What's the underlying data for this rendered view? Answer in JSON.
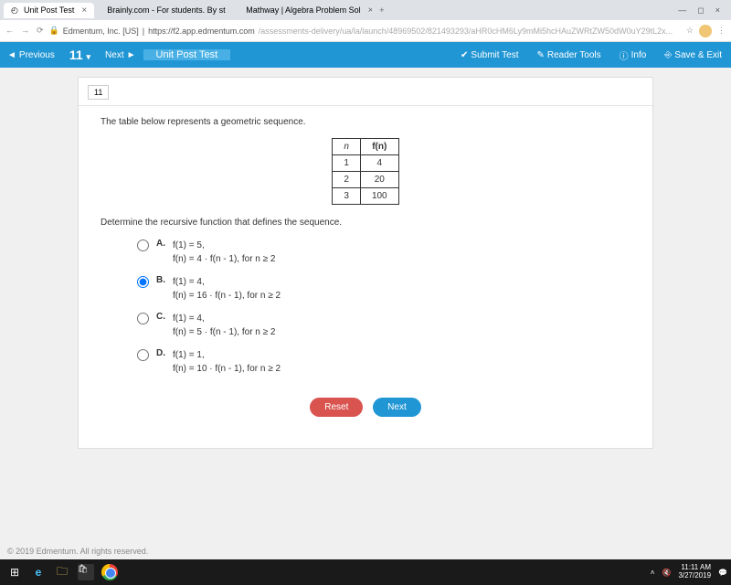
{
  "browser": {
    "tabs": [
      {
        "title": "Unit Post Test",
        "active": true
      },
      {
        "title": "Brainly.com - For students. By st",
        "active": false
      },
      {
        "title": "Mathway | Algebra Problem Sol",
        "active": false
      }
    ],
    "url_prefix": "Edmentum, Inc. [US]",
    "url_domain": "https://f2.app.edmentum.com",
    "url_path": "/assessments-delivery/ua/la/launch/48969502/821493293/aHR0cHM6Ly9mMi5hcHAuZWRtZW50dW0uY29tL2x..."
  },
  "appbar": {
    "prev": "Previous",
    "qnum": "11",
    "next": "Next",
    "title": "Unit Post Test",
    "submit": "Submit Test",
    "tools": "Reader Tools",
    "info": "Info",
    "save": "Save & Exit"
  },
  "question": {
    "number": "11",
    "prompt": "The table below represents a geometric sequence.",
    "table": {
      "head_n": "n",
      "head_fn": "f(n)",
      "r1c1": "1",
      "r1c2": "4",
      "r2c1": "2",
      "r2c2": "20",
      "r3c1": "3",
      "r3c2": "100"
    },
    "subprompt": "Determine the recursive function that defines the sequence.",
    "choices": {
      "a": {
        "label": "A.",
        "line1": "f(1) = 5,",
        "line2": "f(n) = 4 · f(n - 1), for n ≥ 2"
      },
      "b": {
        "label": "B.",
        "line1": "f(1) = 4,",
        "line2": "f(n) = 16 · f(n - 1), for n ≥ 2"
      },
      "c": {
        "label": "C.",
        "line1": "f(1) = 4,",
        "line2": "f(n) = 5 · f(n - 1), for n ≥ 2"
      },
      "d": {
        "label": "D.",
        "line1": "f(1) = 1,",
        "line2": "f(n) = 10 · f(n - 1), for n ≥ 2"
      }
    },
    "selected": "b",
    "reset": "Reset",
    "next_btn": "Next"
  },
  "footer": {
    "copyright": "© 2019 Edmentum. All rights reserved."
  },
  "taskbar": {
    "time": "11:11 AM",
    "date": "3/27/2019"
  }
}
